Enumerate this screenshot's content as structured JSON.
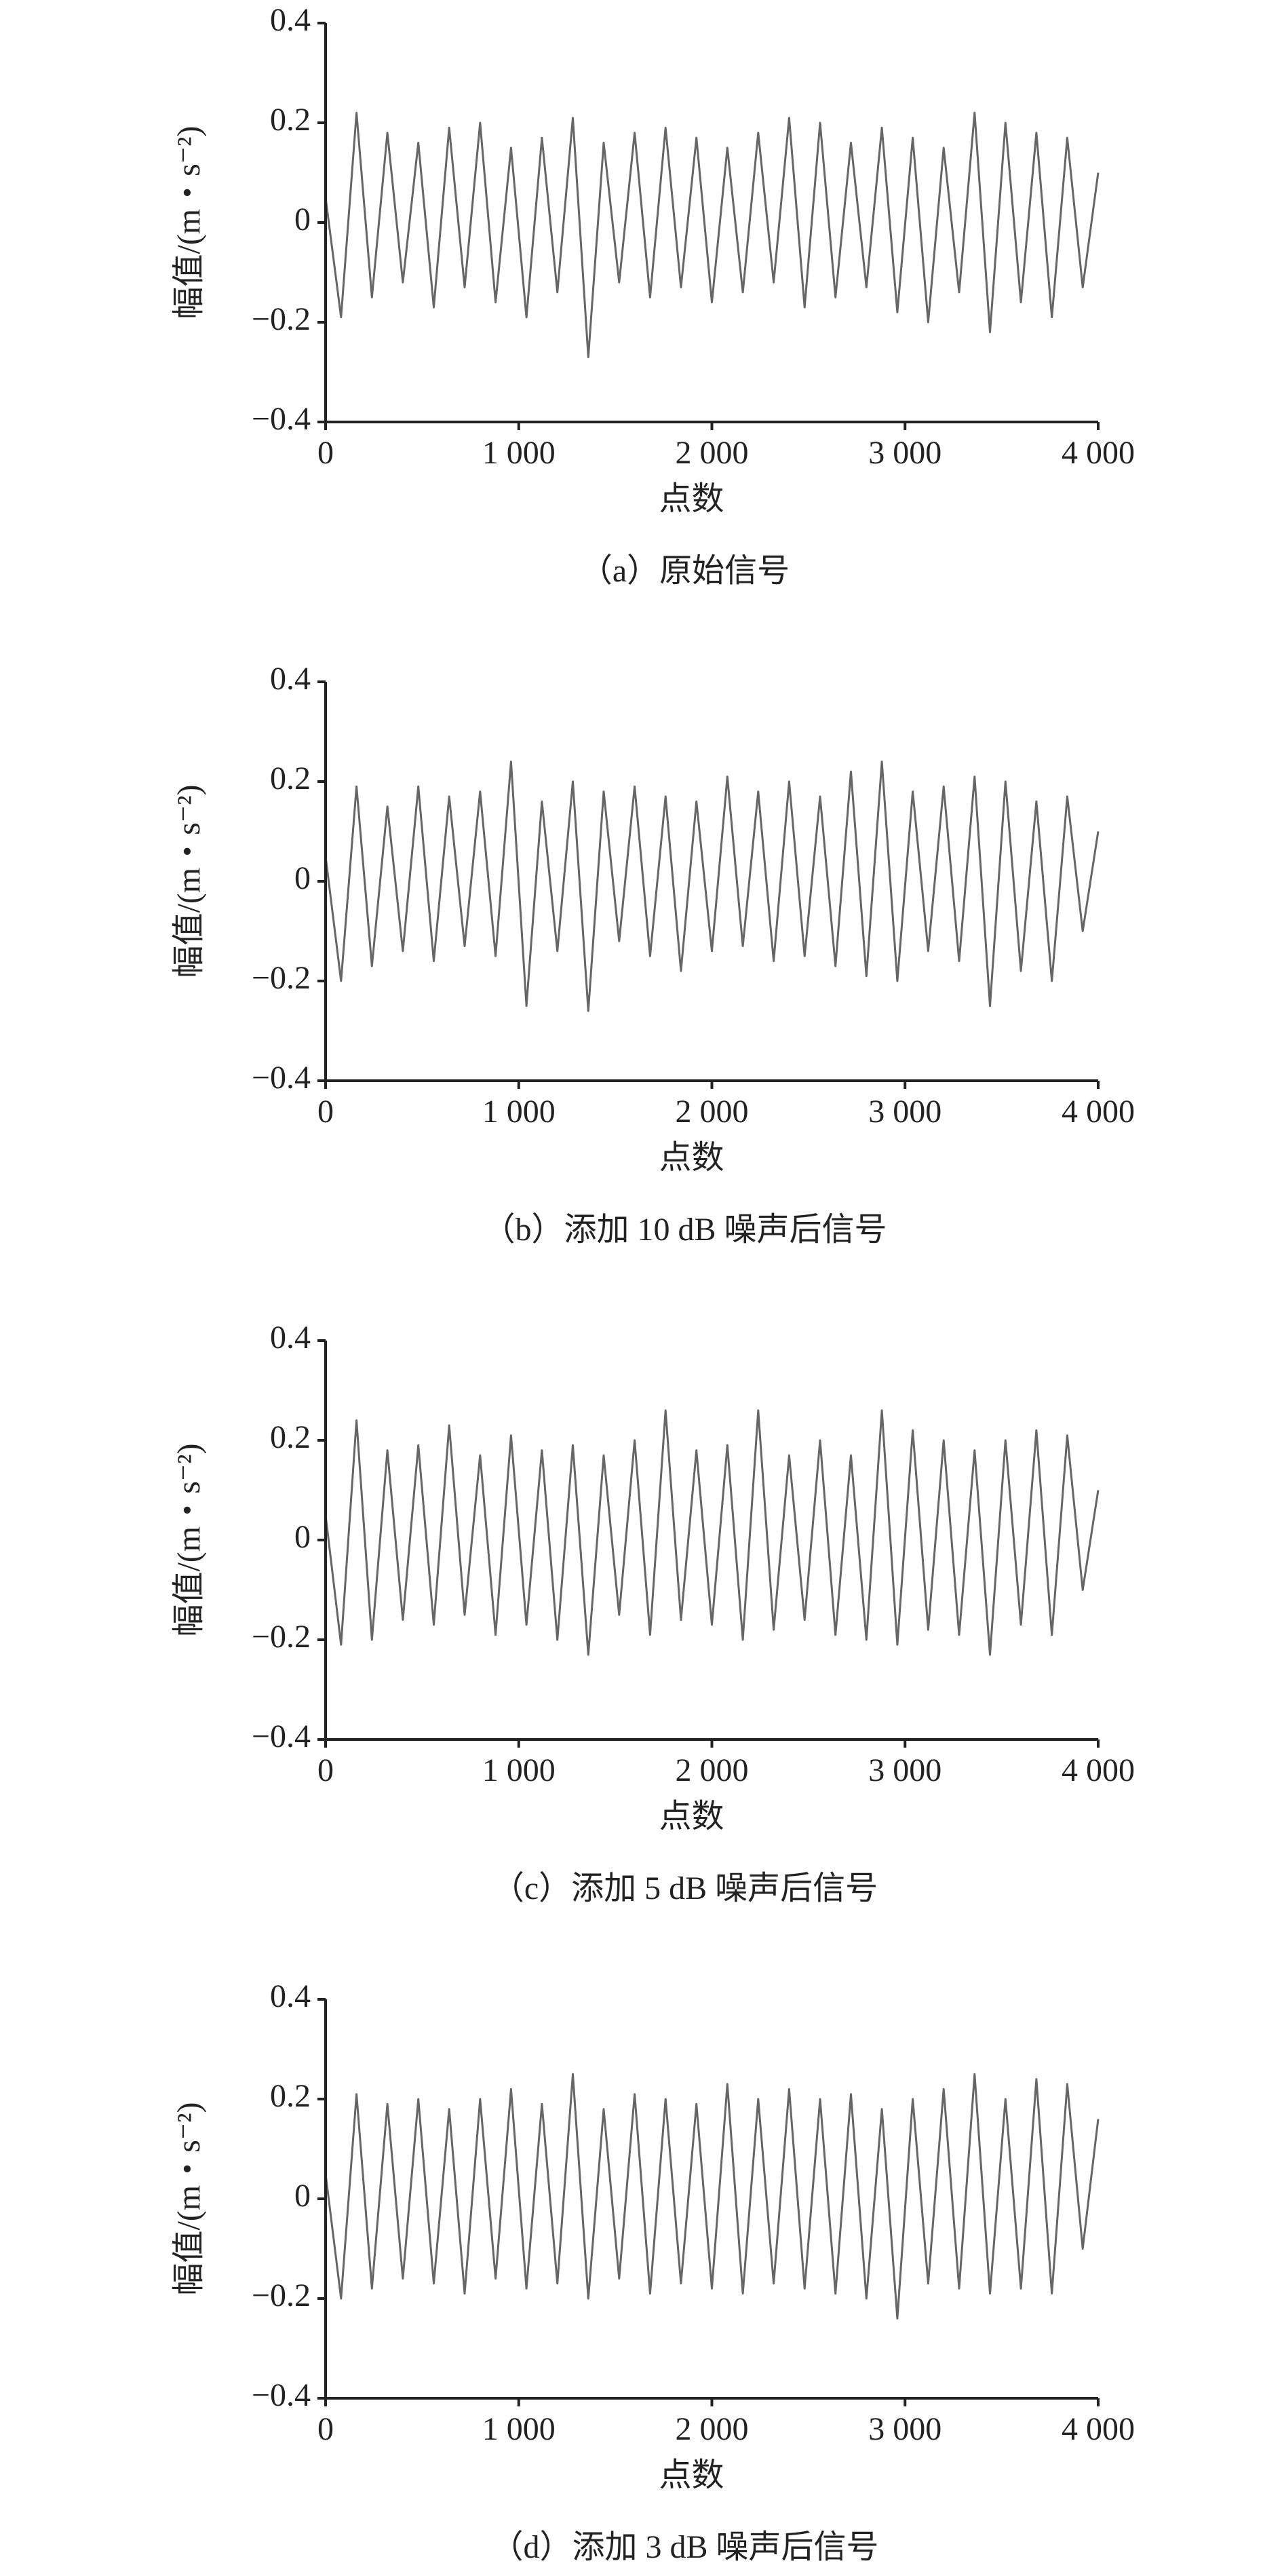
{
  "chart_data": [
    {
      "type": "line",
      "color": "#666666",
      "ylabel": "幅值/(m・s⁻²)",
      "xlabel": "点数",
      "caption": "（a）原始信号",
      "xlim": [
        0,
        4000
      ],
      "ylim": [
        -0.4,
        0.4
      ],
      "xticks": [
        0,
        {
          "value": 1000,
          "label": "1 000"
        },
        {
          "value": 2000,
          "label": "2 000"
        },
        {
          "value": 3000,
          "label": "3 000"
        },
        {
          "value": 4000,
          "label": "4 000"
        }
      ],
      "yticks": [
        {
          "value": -0.4,
          "label": "−0.4"
        },
        {
          "value": -0.2,
          "label": "−0.2"
        },
        0,
        0.2,
        0.4
      ],
      "x": [
        0,
        80,
        160,
        240,
        320,
        400,
        480,
        560,
        640,
        720,
        800,
        880,
        960,
        1040,
        1120,
        1200,
        1280,
        1360,
        1440,
        1520,
        1600,
        1680,
        1760,
        1840,
        1920,
        2000,
        2080,
        2160,
        2240,
        2320,
        2400,
        2480,
        2560,
        2640,
        2720,
        2800,
        2880,
        2960,
        3040,
        3120,
        3200,
        3280,
        3360,
        3440,
        3520,
        3600,
        3680,
        3760,
        3840,
        3920,
        4000
      ],
      "values": [
        0.05,
        -0.19,
        0.22,
        -0.15,
        0.18,
        -0.12,
        0.16,
        -0.17,
        0.19,
        -0.13,
        0.2,
        -0.16,
        0.15,
        -0.19,
        0.17,
        -0.14,
        0.21,
        -0.27,
        0.16,
        -0.12,
        0.18,
        -0.15,
        0.19,
        -0.13,
        0.17,
        -0.16,
        0.15,
        -0.14,
        0.18,
        -0.12,
        0.21,
        -0.17,
        0.2,
        -0.15,
        0.16,
        -0.13,
        0.19,
        -0.18,
        0.17,
        -0.2,
        0.15,
        -0.14,
        0.22,
        -0.22,
        0.2,
        -0.16,
        0.18,
        -0.19,
        0.17,
        -0.13,
        0.1
      ]
    },
    {
      "type": "line",
      "color": "#666666",
      "ylabel": "幅值/(m・s⁻²)",
      "xlabel": "点数",
      "caption": "（b）添加 10 dB 噪声后信号",
      "xlim": [
        0,
        4000
      ],
      "ylim": [
        -0.4,
        0.4
      ],
      "xticks": [
        0,
        {
          "value": 1000,
          "label": "1 000"
        },
        {
          "value": 2000,
          "label": "2 000"
        },
        {
          "value": 3000,
          "label": "3 000"
        },
        {
          "value": 4000,
          "label": "4 000"
        }
      ],
      "yticks": [
        {
          "value": -0.4,
          "label": "−0.4"
        },
        {
          "value": -0.2,
          "label": "−0.2"
        },
        0,
        0.2,
        0.4
      ],
      "x": [
        0,
        80,
        160,
        240,
        320,
        400,
        480,
        560,
        640,
        720,
        800,
        880,
        960,
        1040,
        1120,
        1200,
        1280,
        1360,
        1440,
        1520,
        1600,
        1680,
        1760,
        1840,
        1920,
        2000,
        2080,
        2160,
        2240,
        2320,
        2400,
        2480,
        2560,
        2640,
        2720,
        2800,
        2880,
        2960,
        3040,
        3120,
        3200,
        3280,
        3360,
        3440,
        3520,
        3600,
        3680,
        3760,
        3840,
        3920,
        4000
      ],
      "values": [
        0.05,
        -0.2,
        0.19,
        -0.17,
        0.15,
        -0.14,
        0.19,
        -0.16,
        0.17,
        -0.13,
        0.18,
        -0.15,
        0.24,
        -0.25,
        0.16,
        -0.14,
        0.2,
        -0.26,
        0.18,
        -0.12,
        0.19,
        -0.15,
        0.17,
        -0.18,
        0.16,
        -0.14,
        0.21,
        -0.13,
        0.18,
        -0.16,
        0.2,
        -0.15,
        0.17,
        -0.17,
        0.22,
        -0.19,
        0.24,
        -0.2,
        0.18,
        -0.14,
        0.19,
        -0.16,
        0.21,
        -0.25,
        0.2,
        -0.18,
        0.16,
        -0.2,
        0.17,
        -0.1,
        0.1
      ]
    },
    {
      "type": "line",
      "color": "#666666",
      "ylabel": "幅值/(m・s⁻²)",
      "xlabel": "点数",
      "caption": "（c）添加 5 dB 噪声后信号",
      "xlim": [
        0,
        4000
      ],
      "ylim": [
        -0.4,
        0.4
      ],
      "xticks": [
        0,
        {
          "value": 1000,
          "label": "1 000"
        },
        {
          "value": 2000,
          "label": "2 000"
        },
        {
          "value": 3000,
          "label": "3 000"
        },
        {
          "value": 4000,
          "label": "4 000"
        }
      ],
      "yticks": [
        {
          "value": -0.4,
          "label": "−0.4"
        },
        {
          "value": -0.2,
          "label": "−0.2"
        },
        0,
        0.2,
        0.4
      ],
      "x": [
        0,
        80,
        160,
        240,
        320,
        400,
        480,
        560,
        640,
        720,
        800,
        880,
        960,
        1040,
        1120,
        1200,
        1280,
        1360,
        1440,
        1520,
        1600,
        1680,
        1760,
        1840,
        1920,
        2000,
        2080,
        2160,
        2240,
        2320,
        2400,
        2480,
        2560,
        2640,
        2720,
        2800,
        2880,
        2960,
        3040,
        3120,
        3200,
        3280,
        3360,
        3440,
        3520,
        3600,
        3680,
        3760,
        3840,
        3920,
        4000
      ],
      "values": [
        0.05,
        -0.21,
        0.24,
        -0.2,
        0.18,
        -0.16,
        0.19,
        -0.17,
        0.23,
        -0.15,
        0.17,
        -0.19,
        0.21,
        -0.17,
        0.18,
        -0.2,
        0.19,
        -0.23,
        0.17,
        -0.15,
        0.2,
        -0.19,
        0.26,
        -0.16,
        0.18,
        -0.17,
        0.19,
        -0.2,
        0.26,
        -0.18,
        0.17,
        -0.16,
        0.2,
        -0.19,
        0.17,
        -0.2,
        0.26,
        -0.21,
        0.22,
        -0.18,
        0.2,
        -0.19,
        0.18,
        -0.23,
        0.2,
        -0.17,
        0.22,
        -0.19,
        0.21,
        -0.1,
        0.1
      ]
    },
    {
      "type": "line",
      "color": "#666666",
      "ylabel": "幅值/(m・s⁻²)",
      "xlabel": "点数",
      "caption": "（d）添加 3 dB 噪声后信号",
      "xlim": [
        0,
        4000
      ],
      "ylim": [
        -0.4,
        0.4
      ],
      "xticks": [
        0,
        {
          "value": 1000,
          "label": "1 000"
        },
        {
          "value": 2000,
          "label": "2 000"
        },
        {
          "value": 3000,
          "label": "3 000"
        },
        {
          "value": 4000,
          "label": "4 000"
        }
      ],
      "yticks": [
        {
          "value": -0.4,
          "label": "−0.4"
        },
        {
          "value": -0.2,
          "label": "−0.2"
        },
        0,
        0.2,
        0.4
      ],
      "x": [
        0,
        80,
        160,
        240,
        320,
        400,
        480,
        560,
        640,
        720,
        800,
        880,
        960,
        1040,
        1120,
        1200,
        1280,
        1360,
        1440,
        1520,
        1600,
        1680,
        1760,
        1840,
        1920,
        2000,
        2080,
        2160,
        2240,
        2320,
        2400,
        2480,
        2560,
        2640,
        2720,
        2800,
        2880,
        2960,
        3040,
        3120,
        3200,
        3280,
        3360,
        3440,
        3520,
        3600,
        3680,
        3760,
        3840,
        3920,
        4000
      ],
      "values": [
        0.05,
        -0.2,
        0.21,
        -0.18,
        0.19,
        -0.16,
        0.2,
        -0.17,
        0.18,
        -0.19,
        0.2,
        -0.16,
        0.22,
        -0.18,
        0.19,
        -0.17,
        0.25,
        -0.2,
        0.18,
        -0.16,
        0.21,
        -0.19,
        0.2,
        -0.17,
        0.19,
        -0.18,
        0.23,
        -0.19,
        0.2,
        -0.17,
        0.22,
        -0.18,
        0.2,
        -0.19,
        0.21,
        -0.2,
        0.18,
        -0.24,
        0.2,
        -0.17,
        0.22,
        -0.18,
        0.25,
        -0.19,
        0.2,
        -0.18,
        0.24,
        -0.19,
        0.23,
        -0.1,
        0.16
      ]
    }
  ]
}
